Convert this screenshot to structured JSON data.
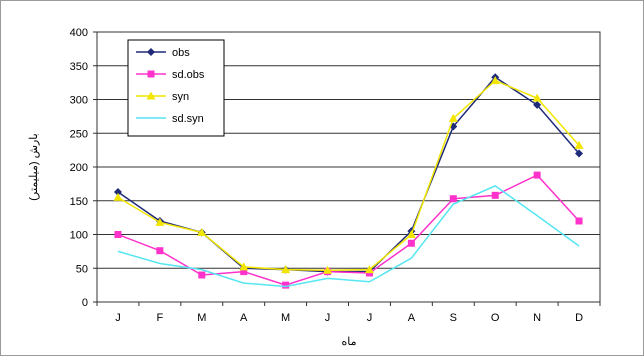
{
  "chart_data": {
    "type": "line",
    "title": "",
    "xlabel": "ماه",
    "ylabel": "بارش (میلیمتر)",
    "categories": [
      "J",
      "F",
      "M",
      "A",
      "M",
      "J",
      "J",
      "A",
      "S",
      "O",
      "N",
      "D"
    ],
    "ylim": [
      0,
      400
    ],
    "yticks": [
      0,
      50,
      100,
      150,
      200,
      250,
      300,
      350,
      400
    ],
    "grid": true,
    "legend_position": "top-left",
    "series": [
      {
        "name": "obs",
        "color": "#1f2a78",
        "marker": "diamond",
        "values": [
          163,
          120,
          103,
          50,
          48,
          45,
          45,
          105,
          260,
          333,
          292,
          220
        ]
      },
      {
        "name": "sd.obs",
        "color": "#ff33cc",
        "marker": "square",
        "values": [
          100,
          76,
          40,
          45,
          25,
          45,
          43,
          87,
          153,
          158,
          188,
          120
        ]
      },
      {
        "name": "syn",
        "color": "#f2e600",
        "marker": "triangle",
        "values": [
          155,
          118,
          103,
          52,
          48,
          47,
          48,
          100,
          272,
          328,
          302,
          232
        ]
      },
      {
        "name": "sd.syn",
        "color": "#55e6f2",
        "marker": "none",
        "values": [
          75,
          57,
          48,
          28,
          23,
          35,
          30,
          65,
          145,
          172,
          128,
          83
        ]
      }
    ]
  }
}
